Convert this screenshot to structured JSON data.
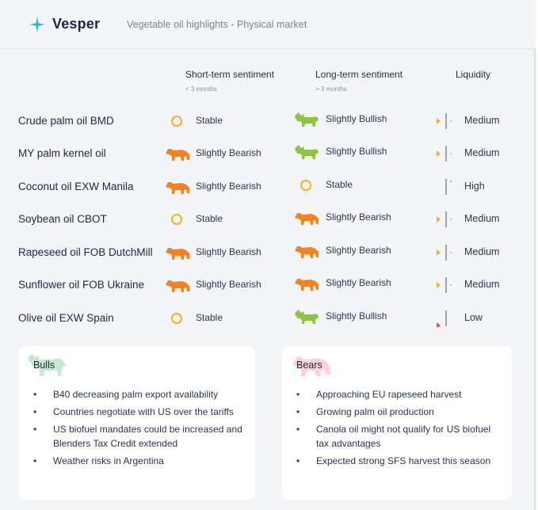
{
  "header": {
    "brand": "Vesper",
    "subtitle": "Vegetable oil highlights - Physical market"
  },
  "columns": {
    "short_term": {
      "label": "Short-term sentiment",
      "sub": "< 3 months"
    },
    "long_term": {
      "label": "Long-term sentiment",
      "sub": "> 3 months"
    },
    "liquidity": {
      "label": "Liquidity"
    }
  },
  "rows": [
    {
      "label": "Crude palm oil BMD",
      "short": "Stable",
      "short_icon": "stable",
      "long": "Slightly Bullish",
      "long_icon": "bull",
      "liquidity": "Medium"
    },
    {
      "label": "MY palm kernel oil",
      "short": "Slightly Bearish",
      "short_icon": "bear",
      "long": "Slightly Bullish",
      "long_icon": "bull",
      "liquidity": "Medium"
    },
    {
      "label": "Coconut oil EXW Manila",
      "short": "Slightly Bearish",
      "short_icon": "bear",
      "long": "Stable",
      "long_icon": "stable",
      "liquidity": "High"
    },
    {
      "label": "Soybean oil CBOT",
      "short": "Stable",
      "short_icon": "stable",
      "long": "Slightly Bearish",
      "long_icon": "bear",
      "liquidity": "Medium"
    },
    {
      "label": "Rapeseed oil FOB DutchMill",
      "short": "Slightly Bearish",
      "short_icon": "bear",
      "long": "Slightly Bearish",
      "long_icon": "bear",
      "liquidity": "Medium"
    },
    {
      "label": "Sunflower oil FOB Ukraine",
      "short": "Slightly Bearish",
      "short_icon": "bear",
      "long": "Slightly Bearish",
      "long_icon": "bear",
      "liquidity": "Medium"
    },
    {
      "label": "Olive oil EXW Spain",
      "short": "Stable",
      "short_icon": "stable",
      "long": "Slightly Bullish",
      "long_icon": "bull",
      "liquidity": "Low"
    }
  ],
  "bulls": {
    "title": "Bulls",
    "items": [
      "B40 decreasing palm export availability",
      "Countries negotiate with US over the tariffs",
      "US biofuel mandates could be increased and Blenders Tax Credit extended",
      "Weather risks in Argentina"
    ]
  },
  "bears": {
    "title": "Bears",
    "items": [
      "Approaching EU rapeseed harvest",
      "Growing palm oil production",
      "Canola oil might not qualify for US biofuel tax advantages",
      "Expected strong SFS harvest this season"
    ]
  },
  "colors": {
    "bull": "#8cc63f",
    "bear": "#f5821f",
    "stable": "#f5b21b",
    "liquidity_high": "#3bb27a",
    "liquidity_low": "#e2504f",
    "liquidity_medium": "#f5b21b"
  }
}
